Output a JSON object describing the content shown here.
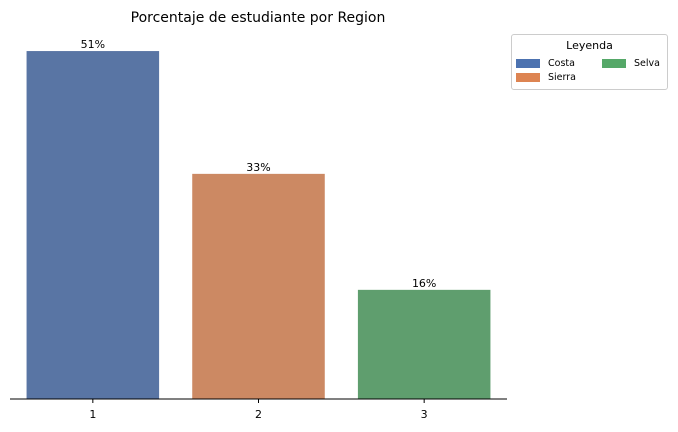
{
  "chart_data": {
    "type": "bar",
    "title": "Porcentaje de estudiante por Region",
    "categories": [
      "1",
      "2",
      "3"
    ],
    "values": [
      51,
      33,
      16
    ],
    "value_labels": [
      "51%",
      "33%",
      "16%"
    ],
    "bar_colors": [
      "#5975a4",
      "#cc8963",
      "#5f9e6e"
    ],
    "xlabel": "",
    "ylabel": "",
    "ylim": [
      0,
      53.5
    ],
    "grid": false,
    "legend": {
      "title": "Leyenda",
      "placement": "upper-right-outside",
      "entries": [
        {
          "label": "Costa",
          "color": "#4c72b0"
        },
        {
          "label": "Sierra",
          "color": "#dd8452"
        },
        {
          "label": "Selva",
          "color": "#55a868"
        }
      ]
    }
  }
}
